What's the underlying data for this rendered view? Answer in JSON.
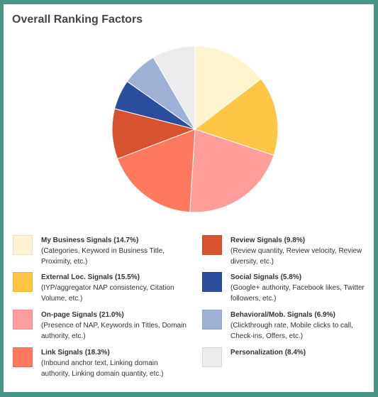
{
  "title": "Overall Ranking Factors",
  "chart_data": {
    "type": "pie",
    "start_angle_deg": 0,
    "slices": [
      {
        "label": "My Business Signals",
        "value": 14.7,
        "value_text": "(14.7%)",
        "desc": "(Categories, Keyword in Business Title, Proximity, etc.)",
        "color": "#fff4d0"
      },
      {
        "label": "External Loc. Signals",
        "value": 15.5,
        "value_text": "(15.5%)",
        "desc": "(IYP/aggregator NAP consistency, Citation Volume, etc.)",
        "color": "#ffc545"
      },
      {
        "label": "On-page Signals",
        "value": 21.0,
        "value_text": "(21.0%)",
        "desc": "(Presence of NAP, Keywords in Titles, Domain authority, etc.)",
        "color": "#ff9d9a"
      },
      {
        "label": "Link Signals",
        "value": 18.3,
        "value_text": "(18.3%)",
        "desc": "(Inbound anchor text, Linking domain authority, Linking domain quantity, etc.)",
        "color": "#ff795e"
      },
      {
        "label": "Review Signals",
        "value": 9.8,
        "value_text": "(9.8%)",
        "desc": "(Review quantity, Review velocity, Review diversity, etc.)",
        "color": "#d9522f"
      },
      {
        "label": "Social Signals",
        "value": 5.8,
        "value_text": "(5.8%)",
        "desc": "(Google+ authority, Facebook likes, Twitter followers, etc.)",
        "color": "#2a4d9c"
      },
      {
        "label": "Behavioral/Mob. Signals",
        "value": 6.9,
        "value_text": "(6.9%)",
        "desc": "(Clickthrough rate, Mobile clicks to call, Check-ins, Offers, etc.)",
        "color": "#9fb0d5"
      },
      {
        "label": "Personalization",
        "value": 8.4,
        "value_text": "(8.4%)",
        "desc": "",
        "color": "#ebebee"
      }
    ]
  }
}
